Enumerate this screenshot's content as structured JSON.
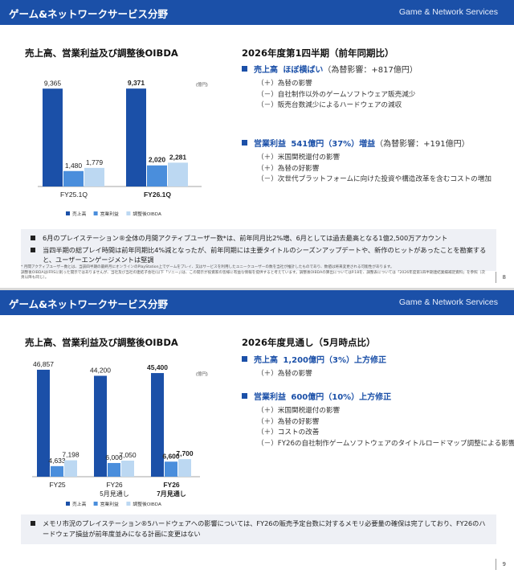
{
  "slides": [
    {
      "header": {
        "title": "ゲーム&ネットワークサービス分野",
        "subtitle": "Game & Network Services"
      },
      "chart_title": "売上高、営業利益及び調整後OIBDA",
      "chart_data": {
        "type": "bar",
        "unit": "(億円)",
        "categories": [
          "FY25.1Q",
          "FY26.1Q"
        ],
        "category_sublabels": [
          "",
          ""
        ],
        "series": [
          {
            "name": "売上高",
            "values": [
              9365,
              9371
            ],
            "labels": [
              "9,365",
              "9,371"
            ]
          },
          {
            "name": "営業利益",
            "values": [
              1480,
              2020
            ],
            "labels": [
              "1,480",
              "2,020"
            ]
          },
          {
            "name": "調整後OIBDA",
            "values": [
              1779,
              2281
            ],
            "labels": [
              "1,779",
              "2,281"
            ]
          }
        ],
        "ylim": [
          0,
          10000
        ],
        "legend": "bottom",
        "grid": false
      },
      "right_title": "2026年度第1四半期（前年同期比）",
      "sections": [
        {
          "label": "売上高",
          "headline": "ほぼ横ばい",
          "note": "（為替影響：+817億円）",
          "items": [
            "（＋）為替の影響",
            "（－）自社制作以外のゲームソフトウェア販売減少",
            "（－）販売台数減少によるハードウェアの減収"
          ]
        },
        {
          "label": "営業利益",
          "headline": "541億円（37%）増益",
          "note": "（為替影響：+191億円）",
          "items": [
            "（＋）米国関税還付の影響",
            "（＋）為替の好影響",
            "（－）次世代プラットフォームに向けた投資や構造改革を含むコストの増加"
          ]
        }
      ],
      "notes": [
        "6月のプレイステーション®全体の月間アクティブユーザー数*は、前年同月比2%増、6月としては過去最高となる1億2,500万アカウント",
        "当四半期の総プレイ時間は前年同期比4%減となったが、前年同期には主要タイトルのシーズンアップデートや、新作のヒットがあったことを勘案すると、ユーザーエンゲージメントは堅調"
      ],
      "footnotes": [
        "* 月間アクティブユーザー数とは、当該四半期の最終月にオンラインのPlayStation上でゲームをプレイ、又はサービスを利用したユニークユーザーの数を当社が推計したものであり、数値は将来変更される可能性があります。",
        "調整後OIBDAはIFRSに則った開示ではありませんが、当社及び当社の連結子会社(以下「ソニー」)は、この開示が投資家の皆様に有益な情報を提供すると考えています。調整後OIBDAの算出についてはP.18を、調整表については「2026年度第1四半期連結業績補足資料」を参照（次頁以降も同じ）。"
      ],
      "page": "8"
    },
    {
      "header": {
        "title": "ゲーム&ネットワークサービス分野",
        "subtitle": "Game & Network Services"
      },
      "chart_title": "売上高、営業利益及び調整後OIBDA",
      "chart_data": {
        "type": "bar",
        "unit": "(億円)",
        "categories": [
          "FY25",
          "FY26",
          "FY26"
        ],
        "category_sublabels": [
          "",
          "5月見通し",
          "7月見通し"
        ],
        "series": [
          {
            "name": "売上高",
            "values": [
              46857,
              44200,
              45400
            ],
            "labels": [
              "46,857",
              "44,200",
              "45,400"
            ]
          },
          {
            "name": "営業利益",
            "values": [
              4633,
              6000,
              6600
            ],
            "labels": [
              "4,633",
              "6,000",
              "6,600"
            ]
          },
          {
            "name": "調整後OIBDA",
            "values": [
              7198,
              7050,
              7700
            ],
            "labels": [
              "7,198",
              "7,050",
              "7,700"
            ]
          }
        ],
        "ylim": [
          0,
          50000
        ],
        "legend": "bottom",
        "grid": false
      },
      "right_title": "2026年度見通し（5月時点比）",
      "sections": [
        {
          "label": "売上高",
          "headline": "1,200億円（3%）上方修正",
          "note": "",
          "items": [
            "（＋）為替の影響"
          ]
        },
        {
          "label": "営業利益",
          "headline": "600億円（10%）上方修正",
          "note": "",
          "items": [
            "（＋）米国関税還付の影響",
            "（＋）為替の好影響",
            "（＋）コストの改善",
            "（－）FY26の自社制作ゲームソフトウェアのタイトルロードマップ調整による影響"
          ]
        }
      ],
      "notes": [
        "メモリ市況のプレイステーション®5ハードウェアへの影響については、FY26の販売予定台数に対するメモリ必要量の確保は完了しており、FY26のハードウェア損益が前年度並みになる計画に変更はない"
      ],
      "footnotes": [],
      "page": "9"
    }
  ],
  "colors": {
    "header": "#1b50a8",
    "sales": "#1b50a8",
    "op": "#4a8edc",
    "oibda": "#bcd8f2",
    "notes_bg": "#eef0f5"
  }
}
